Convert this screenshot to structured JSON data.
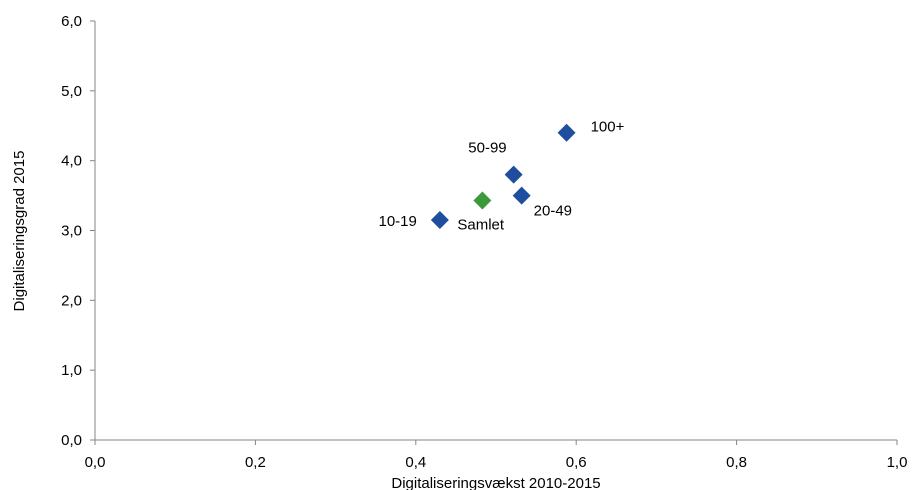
{
  "chart_data": {
    "type": "scatter",
    "title": "",
    "xlabel": "Digitaliseringsvækst 2010-2015",
    "ylabel": "Digitaliseringsgrad 2015",
    "xlim": [
      0,
      1.0
    ],
    "ylim": [
      0,
      6.0
    ],
    "x_ticks": [
      0,
      0.2,
      0.4,
      0.6,
      0.8,
      1.0
    ],
    "y_ticks": [
      0,
      1.0,
      2.0,
      3.0,
      4.0,
      5.0,
      6.0
    ],
    "x_tick_labels": [
      "0,0",
      "0,2",
      "0,4",
      "0,6",
      "0,8",
      "1,0"
    ],
    "y_tick_labels": [
      "0,0",
      "1,0",
      "2,0",
      "3,0",
      "4,0",
      "5,0",
      "6,0"
    ],
    "grid": false,
    "marker": "diamond",
    "points": [
      {
        "label": "10-19",
        "x": 0.43,
        "y": 3.15,
        "color": "#1f4e9e",
        "label_side": "left"
      },
      {
        "label": "20-49",
        "x": 0.532,
        "y": 3.5,
        "color": "#1f4e9e",
        "label_side": "below-right"
      },
      {
        "label": "50-99",
        "x": 0.522,
        "y": 3.8,
        "color": "#1f4e9e",
        "label_side": "above-left"
      },
      {
        "label": "100+",
        "x": 0.588,
        "y": 4.4,
        "color": "#1f4e9e",
        "label_side": "right"
      },
      {
        "label": "Samlet",
        "x": 0.483,
        "y": 3.43,
        "color": "#3c9a3c",
        "label_side": "below"
      }
    ]
  }
}
